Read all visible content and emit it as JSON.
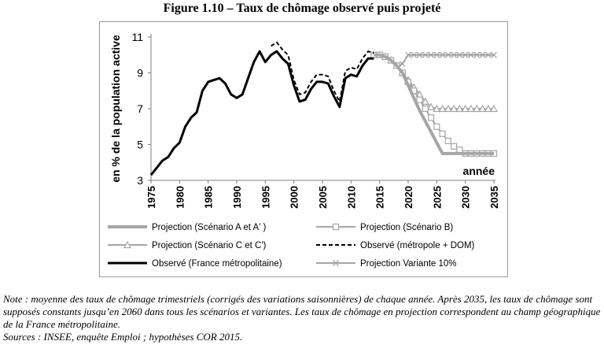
{
  "figure_title": "Figure 1.10 – Taux de chômage observé puis projeté",
  "note": "Note : moyenne des taux de chômage trimestriels (corrigés des variations saisonnières) de chaque année. Après 2035, les taux de chômage sont supposés constants jusqu’en 2060 dans tous les scénarios et variantes. Les taux de chômage en projection correspondent au champ géographique de la France métropolitaine.",
  "sources": "Sources : INSEE, enquête Emploi ; hypothèses COR 2015.",
  "colors": {
    "observed": "#000000",
    "projection": "#a6a6a6",
    "frame": "#9a9a9a"
  },
  "chart_data": {
    "type": "line",
    "title": "",
    "xlabel": "année",
    "ylabel": "en % de la population active",
    "xlim": [
      1975,
      2035
    ],
    "ylim": [
      3,
      11
    ],
    "x_ticks": [
      "1975",
      "1980",
      "1985",
      "1990",
      "1995",
      "2000",
      "2005",
      "2010",
      "2015",
      "2020",
      "2025",
      "2030",
      "2035"
    ],
    "y_ticks": [
      "3",
      "5",
      "7",
      "9",
      "11"
    ],
    "grid": false,
    "legend_position": "bottom",
    "series": [
      {
        "name": "Observé (France métropolitaine)",
        "style": "solid-thick",
        "color": "#000000",
        "marker": "none",
        "x": [
          1975,
          1976,
          1977,
          1978,
          1979,
          1980,
          1981,
          1982,
          1983,
          1984,
          1985,
          1986,
          1987,
          1988,
          1989,
          1990,
          1991,
          1992,
          1993,
          1994,
          1995,
          1996,
          1997,
          1998,
          1999,
          2000,
          2001,
          2002,
          2003,
          2004,
          2005,
          2006,
          2007,
          2008,
          2009,
          2010,
          2011,
          2012,
          2013,
          2014
        ],
        "y": [
          3.3,
          3.7,
          4.1,
          4.3,
          4.8,
          5.1,
          6.0,
          6.5,
          6.8,
          8.0,
          8.5,
          8.6,
          8.7,
          8.4,
          7.8,
          7.6,
          7.8,
          8.7,
          9.6,
          10.2,
          9.6,
          10.0,
          10.2,
          9.8,
          9.5,
          8.3,
          7.4,
          7.5,
          8.1,
          8.5,
          8.5,
          8.4,
          7.7,
          7.1,
          8.7,
          8.9,
          8.8,
          9.4,
          9.8,
          9.8
        ]
      },
      {
        "name": "Observé (métropole + DOM)",
        "style": "dashed",
        "color": "#000000",
        "marker": "none",
        "x": [
          1996,
          1997,
          1998,
          1999,
          2000,
          2001,
          2002,
          2003,
          2004,
          2005,
          2006,
          2007,
          2008,
          2009,
          2010,
          2011,
          2012,
          2013,
          2014
        ],
        "y": [
          10.5,
          10.7,
          10.3,
          10.0,
          8.6,
          7.8,
          7.9,
          8.5,
          8.9,
          8.9,
          8.8,
          8.0,
          7.4,
          9.1,
          9.3,
          9.2,
          9.8,
          10.2,
          10.1
        ]
      },
      {
        "name": "Projection (Scénario A et  A' )",
        "style": "solid-thick",
        "color": "#a6a6a6",
        "marker": "none",
        "x": [
          2014,
          2015,
          2016,
          2017,
          2018,
          2019,
          2020,
          2021,
          2022,
          2023,
          2024,
          2025,
          2026,
          2027,
          2028,
          2029,
          2030,
          2031,
          2032,
          2033,
          2034,
          2035
        ],
        "y": [
          10.0,
          10.0,
          9.9,
          9.7,
          9.4,
          9.0,
          8.3,
          7.6,
          6.9,
          6.3,
          5.7,
          5.1,
          4.5,
          4.5,
          4.5,
          4.5,
          4.5,
          4.5,
          4.5,
          4.5,
          4.5,
          4.5
        ]
      },
      {
        "name": "Projection (Scénario B)",
        "style": "solid",
        "color": "#a6a6a6",
        "marker": "square",
        "x": [
          2014,
          2015,
          2016,
          2017,
          2018,
          2019,
          2020,
          2021,
          2022,
          2023,
          2024,
          2025,
          2026,
          2027,
          2028,
          2029,
          2030,
          2031,
          2032,
          2033,
          2034,
          2035
        ],
        "y": [
          10.0,
          10.0,
          9.9,
          9.7,
          9.4,
          9.0,
          8.5,
          8.0,
          7.5,
          7.0,
          6.5,
          6.0,
          5.6,
          5.2,
          4.9,
          4.7,
          4.5,
          4.5,
          4.5,
          4.5,
          4.5,
          4.5
        ]
      },
      {
        "name": "Projection (Scénario C et  C')",
        "style": "solid",
        "color": "#a6a6a6",
        "marker": "triangle",
        "x": [
          2014,
          2015,
          2016,
          2017,
          2018,
          2019,
          2020,
          2021,
          2022,
          2023,
          2024,
          2025,
          2026,
          2027,
          2028,
          2029,
          2030,
          2031,
          2032,
          2033,
          2034,
          2035
        ],
        "y": [
          10.0,
          10.0,
          9.9,
          9.7,
          9.4,
          9.0,
          8.6,
          8.2,
          7.8,
          7.4,
          7.1,
          7.0,
          7.0,
          7.0,
          7.0,
          7.0,
          7.0,
          7.0,
          7.0,
          7.0,
          7.0,
          7.0
        ]
      },
      {
        "name": "Projection Variante 10%",
        "style": "solid",
        "color": "#a6a6a6",
        "marker": "x",
        "x": [
          2014,
          2015,
          2016,
          2017,
          2018,
          2019,
          2020,
          2021,
          2022,
          2023,
          2024,
          2025,
          2026,
          2027,
          2028,
          2029,
          2030,
          2031,
          2032,
          2033,
          2034,
          2035
        ],
        "y": [
          10.0,
          10.0,
          9.9,
          9.7,
          9.4,
          9.5,
          10.0,
          10.0,
          10.0,
          10.0,
          10.0,
          10.0,
          10.0,
          10.0,
          10.0,
          10.0,
          10.0,
          10.0,
          10.0,
          10.0,
          10.0,
          10.0
        ]
      }
    ],
    "legend_order": [
      2,
      3,
      4,
      1,
      0,
      5
    ]
  }
}
